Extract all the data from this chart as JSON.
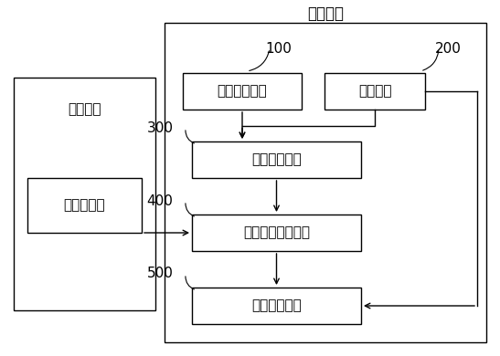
{
  "title": "移动终端",
  "left_box_label": "有源附件",
  "signal_label": "信号发生器",
  "block_100_label": "有源附件接口",
  "block_200_label": "预设模块",
  "block_300_label": "连接检测模块",
  "block_400_label": "信号频率检测模块",
  "block_500_label": "类型判断模块",
  "num_100": "100",
  "num_200": "200",
  "num_300": "300",
  "num_400": "400",
  "num_500": "500",
  "bg_color": "#ffffff",
  "box_edge_color": "#000000",
  "text_color": "#000000",
  "font_size_title": 12,
  "font_size_block": 11,
  "font_size_num": 11
}
